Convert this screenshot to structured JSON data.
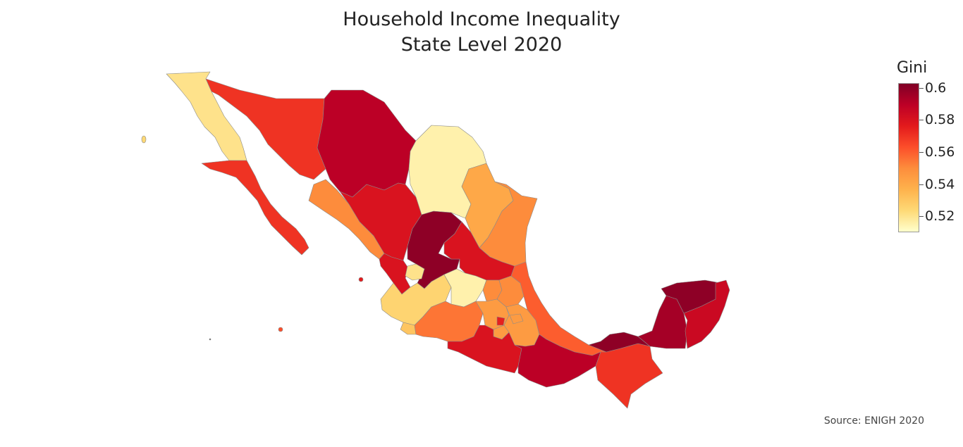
{
  "title_line1": "Household Income Inequality",
  "title_line2": "State Level 2020",
  "legend": {
    "title": "Gini",
    "min": 0.51,
    "max": 0.603,
    "ticks": [
      {
        "value": 0.6,
        "label": "0.6"
      },
      {
        "value": 0.58,
        "label": "0.58"
      },
      {
        "value": 0.56,
        "label": "0.56"
      },
      {
        "value": 0.54,
        "label": "0.54"
      },
      {
        "value": 0.52,
        "label": "0.52"
      }
    ],
    "colors": [
      "#800026",
      "#bd0026",
      "#e31a1c",
      "#fc4e2a",
      "#fd8d3c",
      "#feb24c",
      "#fed976",
      "#ffffcc"
    ]
  },
  "source": "Source: ENIGH 2020",
  "chart_data": {
    "type": "choropleth",
    "region": "Mexico",
    "value_name": "Gini",
    "states": [
      {
        "name": "Baja California",
        "gini": 0.52
      },
      {
        "name": "Baja California Sur",
        "gini": 0.57
      },
      {
        "name": "Sonora",
        "gini": 0.57
      },
      {
        "name": "Chihuahua",
        "gini": 0.59
      },
      {
        "name": "Coahuila",
        "gini": 0.515
      },
      {
        "name": "Nuevo León",
        "gini": 0.54
      },
      {
        "name": "Tamaulipas",
        "gini": 0.55
      },
      {
        "name": "Sinaloa",
        "gini": 0.55
      },
      {
        "name": "Durango",
        "gini": 0.58
      },
      {
        "name": "Zacatecas",
        "gini": 0.6
      },
      {
        "name": "San Luis Potosí",
        "gini": 0.58
      },
      {
        "name": "Nayarit",
        "gini": 0.58
      },
      {
        "name": "Aguascalientes",
        "gini": 0.52
      },
      {
        "name": "Jalisco",
        "gini": 0.525
      },
      {
        "name": "Guanajuato",
        "gini": 0.515
      },
      {
        "name": "Querétaro",
        "gini": 0.55
      },
      {
        "name": "Hidalgo",
        "gini": 0.55
      },
      {
        "name": "Colima",
        "gini": 0.53
      },
      {
        "name": "Michoacán",
        "gini": 0.555
      },
      {
        "name": "Estado de México",
        "gini": 0.545
      },
      {
        "name": "Ciudad de México",
        "gini": 0.575
      },
      {
        "name": "Morelos",
        "gini": 0.545
      },
      {
        "name": "Tlaxcala",
        "gini": 0.53
      },
      {
        "name": "Puebla",
        "gini": 0.545
      },
      {
        "name": "Veracruz",
        "gini": 0.56
      },
      {
        "name": "Guerrero",
        "gini": 0.58
      },
      {
        "name": "Oaxaca",
        "gini": 0.59
      },
      {
        "name": "Chiapas",
        "gini": 0.57
      },
      {
        "name": "Tabasco",
        "gini": 0.6
      },
      {
        "name": "Campeche",
        "gini": 0.595
      },
      {
        "name": "Yucatán",
        "gini": 0.6
      },
      {
        "name": "Quintana Roo",
        "gini": 0.585
      }
    ]
  }
}
